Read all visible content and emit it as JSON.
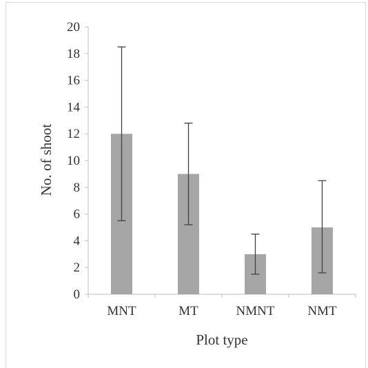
{
  "chart_data": {
    "type": "bar",
    "title": "",
    "xlabel": "Plot type",
    "ylabel": "No. of shoot",
    "categories": [
      "MNT",
      "MT",
      "NMNT",
      "NMT"
    ],
    "values": [
      12,
      9,
      3,
      5
    ],
    "error_bars": {
      "upper": [
        18.5,
        12.8,
        4.5,
        8.5
      ],
      "lower": [
        5.5,
        5.2,
        1.5,
        1.6
      ]
    },
    "ylim": [
      0,
      20
    ],
    "yticks": [
      "0",
      "2",
      "4",
      "6",
      "8",
      "10",
      "12",
      "14",
      "16",
      "18",
      "20"
    ],
    "grid": false,
    "legend": "none",
    "bar_color": "#a6a6a6",
    "error_bar_color": "#404040"
  }
}
